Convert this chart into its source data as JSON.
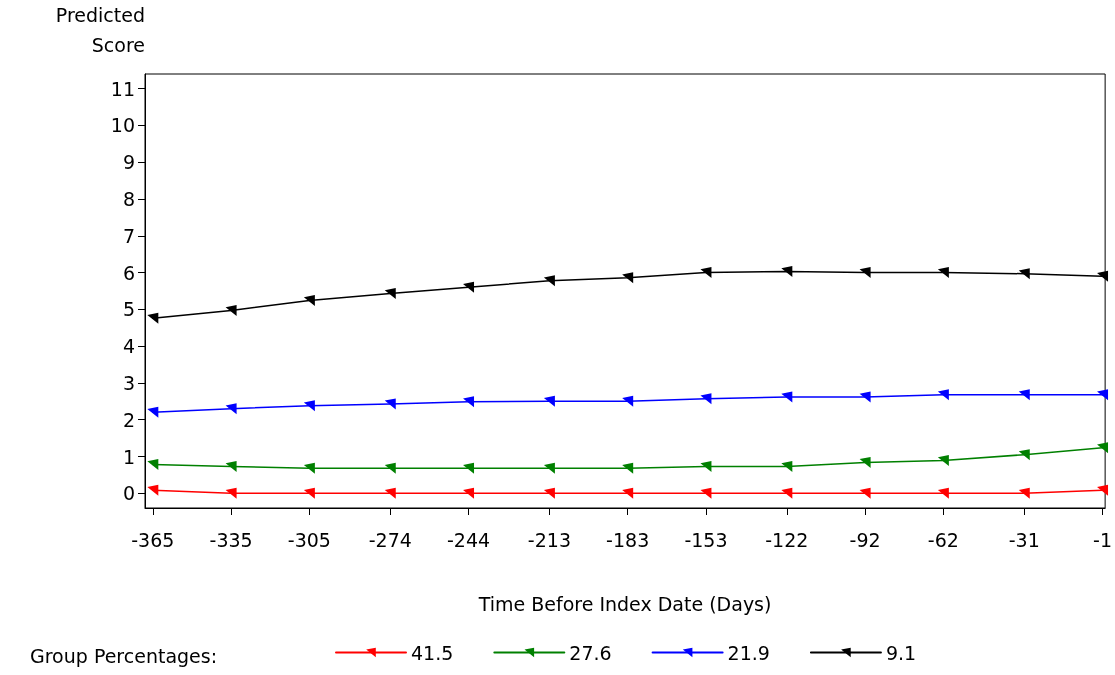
{
  "chart_data": {
    "type": "line",
    "ylabel": "Predicted Score",
    "xlabel": "Time Before Index Date (Days)",
    "legend_title": "Group Percentages:",
    "x": [
      -365,
      -335,
      -305,
      -274,
      -244,
      -213,
      -183,
      -153,
      -122,
      -92,
      -62,
      -31,
      -1
    ],
    "series": [
      {
        "name": "41.5",
        "color": "#ff0000",
        "values": [
          0.08,
          0,
          0,
          0,
          0,
          0,
          0,
          0,
          0,
          0,
          0,
          0,
          0.08
        ]
      },
      {
        "name": "27.6",
        "color": "#008000",
        "values": [
          0.78,
          0.73,
          0.68,
          0.68,
          0.68,
          0.68,
          0.68,
          0.73,
          0.73,
          0.84,
          0.89,
          1.05,
          1.24
        ]
      },
      {
        "name": "21.9",
        "color": "#0000ff",
        "values": [
          2.2,
          2.3,
          2.38,
          2.43,
          2.49,
          2.5,
          2.5,
          2.57,
          2.62,
          2.62,
          2.68,
          2.68,
          2.68
        ]
      },
      {
        "name": "9.1",
        "color": "#000000",
        "values": [
          4.76,
          4.97,
          5.24,
          5.43,
          5.6,
          5.78,
          5.86,
          6.0,
          6.03,
          6.0,
          6.0,
          5.97,
          5.9
        ]
      }
    ],
    "xlim": [
      -368,
      0
    ],
    "xticks": [
      -365,
      -335,
      -305,
      -274,
      -244,
      -213,
      -183,
      -153,
      -122,
      -92,
      -62,
      -31,
      -1
    ],
    "ylim": [
      -0.4,
      11.4
    ],
    "yticks": [
      0,
      1,
      2,
      3,
      4,
      5,
      6,
      7,
      8,
      9,
      10,
      11
    ],
    "grid": false,
    "legend": "bottom",
    "marker": "cross",
    "line_style": "solid"
  }
}
